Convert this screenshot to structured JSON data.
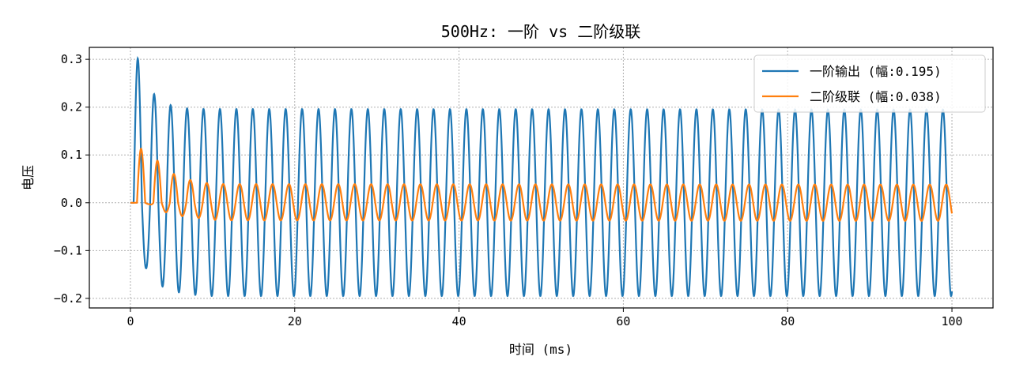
{
  "chart_data": {
    "type": "line",
    "title": "500Hz: 一阶 vs 二阶级联",
    "xlabel": "时间 (ms)",
    "ylabel": "电压",
    "xlim": [
      -5,
      105
    ],
    "ylim": [
      -0.22,
      0.325
    ],
    "xticks": [
      0,
      20,
      40,
      60,
      80,
      100
    ],
    "yticks": [
      -0.2,
      -0.1,
      0.0,
      0.1,
      0.2,
      0.3
    ],
    "xtick_labels": [
      "0",
      "20",
      "40",
      "60",
      "80",
      "100"
    ],
    "ytick_labels": [
      "−0.2",
      "−0.1",
      "0.0",
      "0.1",
      "0.2",
      "0.3"
    ],
    "grid": true,
    "legend_position": "top-right",
    "signal_frequency_hz": 500,
    "series": [
      {
        "name": "一阶输出 (幅:0.195)",
        "color": "#1f77b4",
        "amplitude": 0.195,
        "peaks": [
          [
            0.9,
            0.302
          ],
          [
            2.95,
            0.225
          ],
          [
            5.0,
            0.203
          ],
          [
            7.0,
            0.197
          ],
          [
            9.0,
            0.196
          ],
          [
            99.0,
            0.195
          ]
        ],
        "troughs": [
          [
            1.9,
            -0.137
          ],
          [
            3.95,
            -0.176
          ],
          [
            6.0,
            -0.188
          ],
          [
            8.0,
            -0.193
          ],
          [
            10.0,
            -0.195
          ],
          [
            100.0,
            -0.195
          ]
        ],
        "x_end": 100,
        "y_end": -0.195
      },
      {
        "name": "二阶级联 (幅:0.038)",
        "color": "#ff7f0e",
        "amplitude": 0.038,
        "peaks": [
          [
            1.3,
            0.113
          ],
          [
            3.3,
            0.088
          ],
          [
            5.3,
            0.06
          ],
          [
            7.4,
            0.047
          ],
          [
            9.4,
            0.041
          ],
          [
            11.4,
            0.039
          ],
          [
            99.4,
            0.038
          ]
        ],
        "troughs": [
          [
            2.3,
            -0.003
          ],
          [
            4.3,
            -0.02
          ],
          [
            6.3,
            -0.028
          ],
          [
            8.4,
            -0.032
          ],
          [
            10.4,
            -0.036
          ],
          [
            12.4,
            -0.037
          ],
          [
            98.4,
            -0.038
          ]
        ],
        "x_end": 100,
        "y_end": -0.003
      }
    ]
  }
}
